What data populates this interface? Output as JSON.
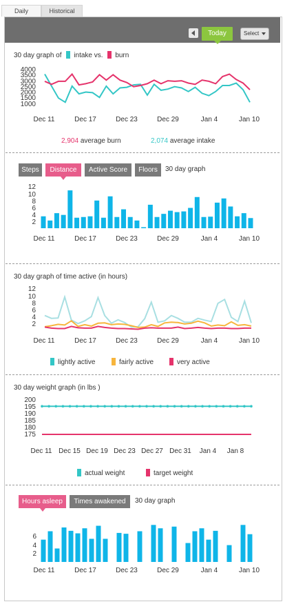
{
  "tabs": [
    {
      "label": "Daily"
    },
    {
      "label": "Historical"
    }
  ],
  "toolbar": {
    "today_label": "Today",
    "select_label": "Select"
  },
  "sections": {
    "intake_burn": {
      "title_prefix": "30 day graph of",
      "intake_label": "intake vs.",
      "burn_label": "burn",
      "avg_burn_value": "2,904",
      "avg_burn_label": "average burn",
      "avg_intake_value": "2,074",
      "avg_intake_label": "average intake"
    },
    "activity": {
      "tabs": [
        "Steps",
        "Distance",
        "Active Score",
        "Floors"
      ],
      "selected": "Distance",
      "subtitle": "30 day graph"
    },
    "time_active": {
      "title": "30 day graph of time active (in hours)",
      "legend": [
        "lightly active",
        "fairly active",
        "very active"
      ]
    },
    "weight": {
      "title": "30 day weight graph (in lbs )",
      "legend": [
        "actual weight",
        "target weight"
      ]
    },
    "sleep": {
      "tabs": [
        "Hours asleep",
        "Times awakened"
      ],
      "selected": "Hours asleep",
      "subtitle": "30 day graph"
    }
  },
  "colors": {
    "teal": "#33c6c6",
    "pink": "#e5336b",
    "blue": "#0fb5e8",
    "orange": "#f7b53c",
    "light_teal": "#a8dfe2",
    "grey": "#7a7a7a",
    "green": "#8cc63f"
  },
  "chart_data": [
    {
      "type": "line",
      "ylim": [
        1000,
        4000
      ],
      "yticks": [
        "4000",
        "3500",
        "3000",
        "2500",
        "2000",
        "1500",
        "1000"
      ],
      "xticks": [
        "Dec 11",
        "Dec 17",
        "Dec 23",
        "Dec 29",
        "Jan 4",
        "Jan 10"
      ],
      "series": [
        {
          "name": "intake",
          "color": "#33c6c6",
          "values": [
            3450,
            2450,
            1450,
            1100,
            2450,
            1800,
            1950,
            1900,
            1500,
            2450,
            1800,
            2300,
            2350,
            2550,
            2600,
            1700,
            2600,
            2100,
            2200,
            2400,
            2300,
            2000,
            2350,
            1850,
            1650,
            2000,
            2500,
            2500,
            2700,
            2150,
            1100
          ]
        },
        {
          "name": "burn",
          "color": "#e5336b",
          "values": [
            2850,
            2600,
            2850,
            2850,
            3450,
            2550,
            2650,
            2800,
            3400,
            2950,
            3400,
            2950,
            2750,
            2400,
            2500,
            2650,
            2950,
            2650,
            2900,
            2850,
            2900,
            2700,
            2600,
            2950,
            2850,
            2650,
            3250,
            3450,
            3000,
            2700,
            2150
          ]
        }
      ]
    },
    {
      "type": "bar",
      "ylim": [
        0,
        12
      ],
      "yticks": [
        "12",
        "10",
        "8",
        "6",
        "4",
        "2"
      ],
      "xticks": [
        "Dec 11",
        "Dec 17",
        "Dec 23",
        "Dec 29",
        "Jan 4",
        "Jan 10"
      ],
      "series": [
        {
          "name": "Distance",
          "color": "#0fb5e8",
          "values": [
            3.4,
            2.2,
            4.3,
            3.8,
            10.8,
            3.0,
            3.2,
            3.4,
            7.9,
            3.0,
            9.1,
            3.2,
            5.4,
            3.2,
            2.2,
            0.3,
            6.7,
            3.2,
            4.1,
            5.0,
            4.6,
            4.8,
            5.8,
            8.9,
            3.2,
            3.3,
            7.3,
            8.5,
            6.2,
            3.4,
            4.3,
            2.9
          ]
        }
      ]
    },
    {
      "type": "line",
      "ylim": [
        0,
        12
      ],
      "yticks": [
        "12",
        "10",
        "8",
        "6",
        "4",
        "2"
      ],
      "xticks": [
        "Dec 11",
        "Dec 17",
        "Dec 23",
        "Dec 29",
        "Jan 4",
        "Jan 10"
      ],
      "series": [
        {
          "name": "lightly active",
          "color": "#a8dfe2",
          "values": [
            4.2,
            3.4,
            3.5,
            9.5,
            2.9,
            1.9,
            2.7,
            3.9,
            9.3,
            4.2,
            2.0,
            3.0,
            2.2,
            0.9,
            1.0,
            3.3,
            8.0,
            2.3,
            2.7,
            4.2,
            3.4,
            2.3,
            2.3,
            3.4,
            2.9,
            2.5,
            7.7,
            8.8,
            3.7,
            2.5,
            8.3,
            2.1
          ]
        },
        {
          "name": "fairly active",
          "color": "#f7b53c",
          "values": [
            1.0,
            1.3,
            1.7,
            1.5,
            2.7,
            1.1,
            1.6,
            1.2,
            2.0,
            2.1,
            1.6,
            1.8,
            1.7,
            1.3,
            0.8,
            0.9,
            1.6,
            1.1,
            2.1,
            2.3,
            2.2,
            1.8,
            2.0,
            2.6,
            2.1,
            1.2,
            1.5,
            1.3,
            2.4,
            1.4,
            1.6,
            1.2
          ]
        },
        {
          "name": "very active",
          "color": "#e5336b",
          "values": [
            0.9,
            0.6,
            0.5,
            0.5,
            1.1,
            0.7,
            0.6,
            0.6,
            1.1,
            0.8,
            0.6,
            0.5,
            0.5,
            0.4,
            0.3,
            0.6,
            0.7,
            0.6,
            0.6,
            0.6,
            0.9,
            0.5,
            0.6,
            0.8,
            0.6,
            0.5,
            0.6,
            0.6,
            0.5,
            0.5,
            0.6,
            0.6
          ]
        }
      ]
    },
    {
      "type": "line",
      "ylim": [
        175,
        200
      ],
      "yticks": [
        "200",
        "195",
        "190",
        "185",
        "180",
        "175"
      ],
      "xticks": [
        "Dec 11",
        "Dec 15",
        "Dec 19",
        "Dec 23",
        "Dec 27",
        "Dec 31",
        "Jan 4",
        "Jan 8"
      ],
      "series": [
        {
          "name": "actual weight",
          "color": "#33c6c6",
          "values": [
            195,
            195,
            195,
            195,
            195,
            195,
            195,
            195,
            195,
            195,
            195,
            195,
            195,
            195,
            195,
            195,
            195,
            195,
            195,
            195,
            195,
            195,
            195,
            195,
            195,
            195,
            195,
            195,
            195,
            195,
            195
          ]
        },
        {
          "name": "target weight",
          "color": "#e5336b",
          "values": [
            175,
            175
          ]
        }
      ]
    },
    {
      "type": "bar",
      "ylim": [
        0,
        10
      ],
      "yticks": [
        "6",
        "4",
        "2"
      ],
      "xticks": [
        "Dec 11",
        "Dec 17",
        "Dec 23",
        "Dec 29",
        "Jan 4",
        "Jan 10"
      ],
      "series": [
        {
          "name": "Hours asleep",
          "color": "#0fb5e8",
          "values": [
            5.3,
            7.3,
            3.2,
            8.2,
            7.4,
            6.8,
            8.0,
            5.5,
            8.6,
            5.5,
            0,
            6.9,
            6.7,
            0,
            7.3,
            0,
            8.8,
            8.0,
            0,
            8.4,
            0,
            4.5,
            7.3,
            8.0,
            5.3,
            7.4,
            0,
            4.0,
            0,
            8.8,
            6.6
          ]
        }
      ]
    }
  ]
}
